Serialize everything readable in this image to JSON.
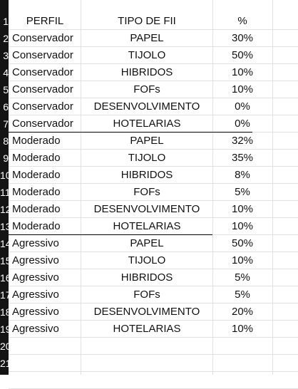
{
  "header": {
    "perfil": "PERFIL",
    "tipo": "TIPO DE FII",
    "pct": "%"
  },
  "row_numbers": [
    "1",
    "2",
    "3",
    "4",
    "5",
    "6",
    "7",
    "8",
    "9",
    "10",
    "11",
    "12",
    "13",
    "14",
    "15",
    "16",
    "17",
    "18",
    "19",
    "20",
    "21",
    "22"
  ],
  "rows": [
    {
      "perfil": "Conservador",
      "tipo": "PAPEL",
      "pct": "30%"
    },
    {
      "perfil": "Conservador",
      "tipo": "TIJOLO",
      "pct": "50%"
    },
    {
      "perfil": "Conservador",
      "tipo": "HIBRIDOS",
      "pct": "10%"
    },
    {
      "perfil": "Conservador",
      "tipo": "FOFs",
      "pct": "10%"
    },
    {
      "perfil": "Conservador",
      "tipo": "DESENVOLVIMENTO",
      "pct": "0%"
    },
    {
      "perfil": "Conservador",
      "tipo": "HOTELARIAS",
      "pct": "0%"
    },
    {
      "perfil": "Moderado",
      "tipo": "PAPEL",
      "pct": "32%"
    },
    {
      "perfil": "Moderado",
      "tipo": "TIJOLO",
      "pct": "35%"
    },
    {
      "perfil": "Moderado",
      "tipo": "HIBRIDOS",
      "pct": "8%"
    },
    {
      "perfil": "Moderado",
      "tipo": "FOFs",
      "pct": "5%"
    },
    {
      "perfil": "Moderado",
      "tipo": "DESENVOLVIMENTO",
      "pct": "10%"
    },
    {
      "perfil": "Moderado",
      "tipo": "HOTELARIAS",
      "pct": "10%"
    },
    {
      "perfil": "Agressivo",
      "tipo": "PAPEL",
      "pct": "50%"
    },
    {
      "perfil": "Agressivo",
      "tipo": "TIJOLO",
      "pct": "10%"
    },
    {
      "perfil": "Agressivo",
      "tipo": "HIBRIDOS",
      "pct": "5%"
    },
    {
      "perfil": "Agressivo",
      "tipo": "FOFs",
      "pct": "5%"
    },
    {
      "perfil": "Agressivo",
      "tipo": "DESENVOLVIMENTO",
      "pct": "20%"
    },
    {
      "perfil": "Agressivo",
      "tipo": "HOTELARIAS",
      "pct": "10%"
    }
  ]
}
